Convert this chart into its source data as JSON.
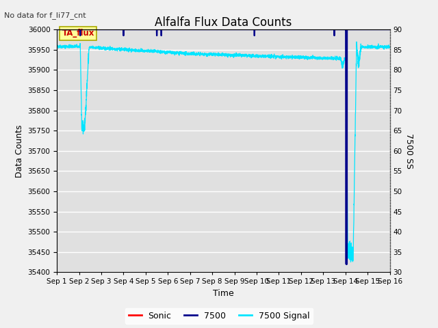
{
  "title": "Alfalfa Flux Data Counts",
  "subtitle": "No data for f_li77_cnt",
  "xlabel": "Time",
  "ylabel": "Data Counts",
  "ylabel_right": "7500 SS",
  "annotation_box": "TA_flux",
  "ylim_left": [
    35400,
    36000
  ],
  "ylim_right": [
    30,
    90
  ],
  "yticks_left": [
    35400,
    35450,
    35500,
    35550,
    35600,
    35650,
    35700,
    35750,
    35800,
    35850,
    35900,
    35950,
    36000
  ],
  "yticks_right": [
    30,
    35,
    40,
    45,
    50,
    55,
    60,
    65,
    70,
    75,
    80,
    85,
    90
  ],
  "xtick_labels": [
    "Sep 1",
    "Sep 2",
    "Sep 3",
    "Sep 4",
    "Sep 5",
    "Sep 6",
    "Sep 7",
    "Sep 8",
    "Sep 9",
    "Sep 10",
    "Sep 11",
    "Sep 12",
    "Sep 13",
    "Sep 14",
    "Sep 15",
    "Sep 16"
  ],
  "num_days": 16,
  "bg_color": "#e0e0e0",
  "grid_color": "#ffffff",
  "fig_bg_color": "#f0f0f0",
  "cyan_line_color": "#00e5ff",
  "blue_line_color": "#00008B",
  "red_line_color": "#ff0000",
  "annotation_box_color": "#ffff99",
  "annotation_box_edge": "#aaaa00",
  "annotation_text_color": "#cc0000",
  "legend_labels": [
    "Sonic",
    "7500",
    "7500 Signal"
  ],
  "legend_colors": [
    "#ff0000",
    "#00008B",
    "#00e5ff"
  ],
  "title_fontsize": 12,
  "axis_fontsize": 9,
  "tick_fontsize": 7.5
}
